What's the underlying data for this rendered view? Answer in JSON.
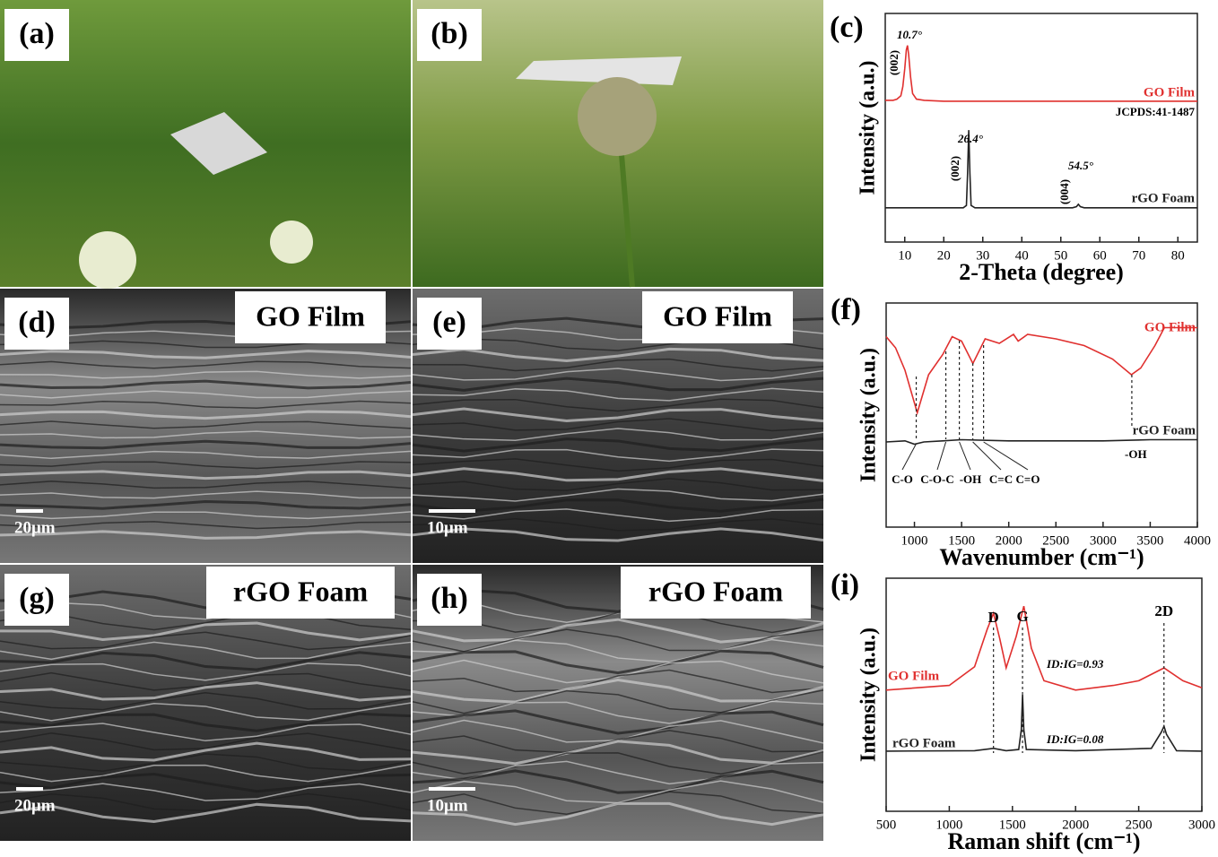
{
  "photo_panels": [
    {
      "label": "(a)"
    },
    {
      "label": "(b)"
    },
    {
      "label": "(d)",
      "caption": "GO Film",
      "scale_bar": "20μm"
    },
    {
      "label": "(e)",
      "caption": "GO Film",
      "scale_bar": "10μm"
    },
    {
      "label": "(g)",
      "caption": "rGO Foam",
      "scale_bar": "20μm"
    },
    {
      "label": "(h)",
      "caption": "rGO Foam",
      "scale_bar": "10μm"
    }
  ],
  "chart_data": [
    {
      "type": "line",
      "panel_label": "(c)",
      "x_label": "2-Theta (degree)",
      "y_label": "Intensity (a.u.)",
      "xlim": [
        5,
        85
      ],
      "xticks": [
        10,
        20,
        30,
        40,
        50,
        60,
        70,
        80
      ],
      "ylim": [
        0,
        100
      ],
      "series": [
        {
          "name": "GO Film",
          "color": "#e0302f",
          "x": [
            5,
            7,
            8,
            9,
            9.5,
            10,
            10.4,
            10.7,
            11,
            11.5,
            12,
            13,
            15,
            20,
            30,
            50,
            70,
            85
          ],
          "values": [
            62,
            62,
            62.5,
            64,
            68,
            76,
            84,
            86,
            82,
            72,
            65,
            62.5,
            62,
            61.6,
            61.6,
            61.6,
            61.6,
            61.6
          ]
        },
        {
          "name": "rGO Foam",
          "color": "#222222",
          "x": [
            5,
            20,
            25,
            25.8,
            26.1,
            26.4,
            26.7,
            27,
            28,
            40,
            53,
            54,
            54.5,
            55,
            56,
            70,
            85
          ],
          "values": [
            15,
            15,
            15,
            16,
            30,
            49,
            30,
            16,
            15,
            15,
            15,
            15.5,
            16.5,
            15.5,
            15,
            15,
            15
          ]
        }
      ],
      "annotations": [
        {
          "text": "10.7°",
          "x": 10.7
        },
        {
          "text": "(002)"
        },
        {
          "text": "26.4°",
          "x": 26.4
        },
        {
          "text": "(002)"
        },
        {
          "text": "54.5°",
          "x": 54.5
        },
        {
          "text": "(004)"
        },
        {
          "text": "JCPDS:41-1487"
        }
      ]
    },
    {
      "type": "line",
      "panel_label": "(f)",
      "x_label": "Wavenumber (cm⁻¹)",
      "y_label": "Intensity (a.u.)",
      "xlim": [
        700,
        4000
      ],
      "xticks": [
        1000,
        1500,
        2000,
        2500,
        3000,
        3500,
        4000
      ],
      "ylim": [
        0,
        100
      ],
      "series": [
        {
          "name": "GO Film",
          "color": "#e0302f",
          "x": [
            700,
            800,
            900,
            1030,
            1150,
            1300,
            1400,
            1500,
            1620,
            1750,
            1900,
            2050,
            2100,
            2200,
            2500,
            2800,
            3100,
            3300,
            3400,
            3550,
            3650,
            4000
          ],
          "values": [
            85,
            80,
            70,
            51,
            68,
            77,
            85,
            83,
            73,
            84,
            82,
            86,
            83,
            86,
            84,
            81,
            75,
            68,
            71,
            81,
            89,
            89
          ]
        },
        {
          "name": "rGO Foam",
          "color": "#222222",
          "x": [
            700,
            900,
            1000,
            1100,
            1300,
            1500,
            2000,
            2500,
            3000,
            3500,
            4000
          ],
          "values": [
            38,
            38.5,
            37,
            38,
            38.5,
            39,
            38.5,
            38.5,
            38.5,
            39,
            39
          ]
        }
      ],
      "annotations": [
        {
          "text": "C-O",
          "x": 1019
        },
        {
          "text": "C-O-C",
          "x": 1333
        },
        {
          "text": "-OH",
          "x": 1476
        },
        {
          "text": "C=C",
          "x": 1619
        },
        {
          "text": "C=O",
          "x": 1733
        },
        {
          "text": "-OH",
          "x": 3305
        }
      ]
    },
    {
      "type": "line",
      "panel_label": "(i)",
      "x_label": "Raman shift (cm⁻¹)",
      "y_label": "Intensity (a.u.)",
      "xlim": [
        500,
        3000
      ],
      "xticks": [
        500,
        1000,
        1500,
        2000,
        2500,
        3000
      ],
      "ylim": [
        0,
        100
      ],
      "series": [
        {
          "name": "GO Film",
          "color": "#e0302f",
          "x": [
            500,
            1000,
            1200,
            1300,
            1350,
            1400,
            1450,
            1530,
            1590,
            1650,
            1750,
            2000,
            2300,
            2500,
            2700,
            2850,
            3000
          ],
          "values": [
            52,
            54,
            62,
            78,
            85,
            74,
            61.5,
            75,
            88,
            70,
            56,
            52,
            54,
            56,
            61.5,
            56,
            53
          ]
        },
        {
          "name": "rGO Foam",
          "color": "#222222",
          "x": [
            500,
            1200,
            1350,
            1450,
            1550,
            1570,
            1580,
            1590,
            1610,
            2000,
            2600,
            2680,
            2700,
            2720,
            2800,
            3000
          ],
          "values": [
            25.8,
            26,
            27,
            26,
            26.5,
            35,
            50,
            35,
            26.5,
            26,
            27,
            34,
            36.5,
            33,
            26,
            25.8
          ]
        }
      ],
      "annotations": [
        {
          "text": "D",
          "x": 1350
        },
        {
          "text": "G",
          "x": 1580
        },
        {
          "text": "2D",
          "x": 2700
        },
        {
          "text": "ID:IG=0.93"
        },
        {
          "text": "ID:IG=0.08"
        }
      ]
    }
  ]
}
